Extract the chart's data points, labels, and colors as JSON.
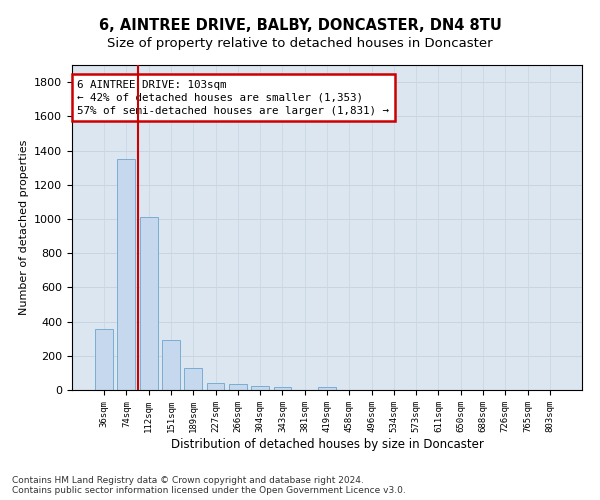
{
  "title": "6, AINTREE DRIVE, BALBY, DONCASTER, DN4 8TU",
  "subtitle": "Size of property relative to detached houses in Doncaster",
  "xlabel": "Distribution of detached houses by size in Doncaster",
  "ylabel": "Number of detached properties",
  "bar_color": "#c5d8ee",
  "bar_edge_color": "#7aadd4",
  "grid_color": "#c8d4e2",
  "background_color": "#dce6f1",
  "categories": [
    "36sqm",
    "74sqm",
    "112sqm",
    "151sqm",
    "189sqm",
    "227sqm",
    "266sqm",
    "304sqm",
    "343sqm",
    "381sqm",
    "419sqm",
    "458sqm",
    "496sqm",
    "534sqm",
    "573sqm",
    "611sqm",
    "650sqm",
    "688sqm",
    "726sqm",
    "765sqm",
    "803sqm"
  ],
  "values": [
    355,
    1350,
    1010,
    290,
    130,
    43,
    35,
    25,
    18,
    0,
    18,
    0,
    0,
    0,
    0,
    0,
    0,
    0,
    0,
    0,
    0
  ],
  "ylim": [
    0,
    1900
  ],
  "yticks": [
    0,
    200,
    400,
    600,
    800,
    1000,
    1200,
    1400,
    1600,
    1800
  ],
  "property_line_color": "#cc0000",
  "property_line_x": 1.5,
  "annotation_text": "6 AINTREE DRIVE: 103sqm\n← 42% of detached houses are smaller (1,353)\n57% of semi-detached houses are larger (1,831) →",
  "annotation_box_edgecolor": "#cc0000",
  "footer_text": "Contains HM Land Registry data © Crown copyright and database right 2024.\nContains public sector information licensed under the Open Government Licence v3.0."
}
